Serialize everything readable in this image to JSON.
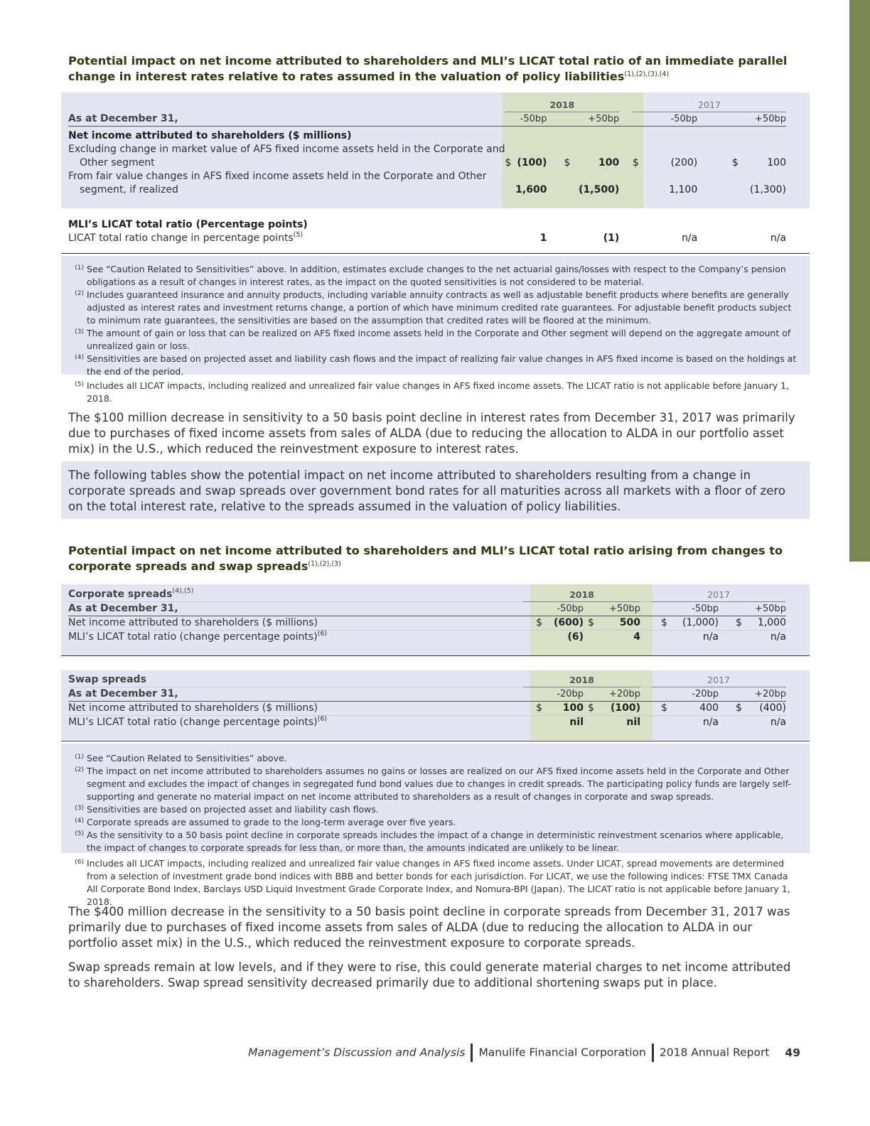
{
  "table1": {
    "heading": "Potential impact on net income attributed to shareholders and MLI’s LICAT total ratio of an immediate parallel change in interest rates relative to rates assumed in the valuation of policy liabilities",
    "heading_sup": "(1),(2),(3),(4)",
    "year_2018": "2018",
    "year_2017": "2017",
    "as_at": "As at December 31,",
    "bp_headers": [
      "-50bp",
      "+50bp",
      "-50bp",
      "+50bp"
    ],
    "section1": "Net income attributed to shareholders ($ millions)",
    "row1_label_a": "Excluding change in market value of AFS fixed income assets held in the Corporate and",
    "row1_label_b": "Other segment",
    "row1": [
      "$",
      "(100)",
      "$",
      "100",
      "$",
      "(200)",
      "$",
      "100"
    ],
    "row2_label_a": "From fair value changes in AFS fixed income assets held in the Corporate and Other",
    "row2_label_b": "segment, if realized",
    "row2": [
      "1,600",
      "(1,500)",
      "1,100",
      "(1,300)"
    ],
    "section2": "MLI’s LICAT total ratio (Percentage points)",
    "row3_label": "LICAT total ratio change in percentage points",
    "row3_sup": "(5)",
    "row3": [
      "1",
      "(1)",
      "n/a",
      "n/a"
    ]
  },
  "notes1": [
    {
      "n": "(1)",
      "t": "See “Caution Related to Sensitivities” above. In addition, estimates exclude changes to the net actuarial gains/losses with respect to the Company’s pension obligations as a result of changes in interest rates, as the impact on the quoted sensitivities is not considered to be material."
    },
    {
      "n": "(2)",
      "t": "Includes guaranteed insurance and annuity products, including variable annuity contracts as well as adjustable benefit products where benefits are generally adjusted as interest rates and investment returns change, a portion of which have minimum credited rate guarantees. For adjustable benefit products subject to minimum rate guarantees, the sensitivities are based on the assumption that credited rates will be floored at the minimum."
    },
    {
      "n": "(3)",
      "t": "The amount of gain or loss that can be realized on AFS fixed income assets held in the Corporate and Other segment will depend on the aggregate amount of unrealized gain or loss."
    },
    {
      "n": "(4)",
      "t": "Sensitivities are based on projected asset and liability cash flows and the impact of realizing fair value changes in AFS fixed income is based on the holdings at the end of the period."
    }
  ],
  "note1_5": {
    "n": "(5)",
    "t": "Includes all LICAT impacts, including realized and unrealized fair value changes in AFS fixed income assets. The LICAT ratio is not applicable before January 1, 2018."
  },
  "para1": "The $100 million decrease in sensitivity to a 50 basis point decline in interest rates from December 31, 2017 was primarily due to purchases of fixed income assets from sales of ALDA (due to reducing the allocation to ALDA in our portfolio asset mix) in the U.S., which reduced the reinvestment exposure to interest rates.",
  "para2": "The following tables show the potential impact on net income attributed to shareholders resulting from a change in corporate spreads and swap spreads over government bond rates for all maturities across all markets with a floor of zero on the total interest rate, relative to the spreads assumed in the valuation of policy liabilities.",
  "table2": {
    "heading": "Potential impact on net income attributed to shareholders and MLI’s LICAT total ratio arising from changes to corporate spreads and swap spreads",
    "heading_sup": "(1),(2),(3)",
    "title": "Corporate spreads",
    "title_sup": "(4),(5)",
    "year_2018": "2018",
    "year_2017": "2017",
    "as_at": "As at December 31,",
    "bp_headers": [
      "-50bp",
      "+50bp",
      "-50bp",
      "+50bp"
    ],
    "row1_label": "Net income attributed to shareholders ($ millions)",
    "row1": [
      "$",
      "(600)",
      "$",
      "500",
      "$",
      "(1,000)",
      "$",
      "1,000"
    ],
    "row2_label": "MLI’s LICAT total ratio (change percentage points)",
    "row2_sup": "(6)",
    "row2": [
      "(6)",
      "4",
      "n/a",
      "n/a"
    ]
  },
  "table3": {
    "title": "Swap spreads",
    "year_2018": "2018",
    "year_2017": "2017",
    "as_at": "As at December 31,",
    "bp_headers": [
      "-20bp",
      "+20bp",
      "-20bp",
      "+20bp"
    ],
    "row1_label": "Net income attributed to shareholders ($ millions)",
    "row1": [
      "$",
      "100",
      "$",
      "(100)",
      "$",
      "400",
      "$",
      "(400)"
    ],
    "row2_label": "MLI’s LICAT total ratio (change percentage points)",
    "row2_sup": "(6)",
    "row2": [
      "nil",
      "nil",
      "n/a",
      "n/a"
    ]
  },
  "notes2": [
    {
      "n": "(1)",
      "t": "See “Caution Related to Sensitivities” above."
    },
    {
      "n": "(2)",
      "t": "The impact on net income attributed to shareholders assumes no gains or losses are realized on our AFS fixed income assets held in the Corporate and Other segment and excludes the impact of changes in segregated fund bond values due to changes in credit spreads. The participating policy funds are largely self-supporting and generate no material impact on net income attributed to shareholders as a result of changes in corporate and swap spreads."
    },
    {
      "n": "(3)",
      "t": "Sensitivities are based on projected asset and liability cash flows."
    },
    {
      "n": "(4)",
      "t": "Corporate spreads are assumed to grade to the long-term average over five years."
    },
    {
      "n": "(5)",
      "t": "As the sensitivity to a 50 basis point decline in corporate spreads includes the impact of a change in deterministic reinvestment scenarios where applicable, the impact of changes to corporate spreads for less than, or more than, the amounts indicated are unlikely to be linear."
    }
  ],
  "note2_6": {
    "n": "(6)",
    "t": "Includes all LICAT impacts, including realized and unrealized fair value changes in AFS fixed income assets. Under LICAT, spread movements are determined from a selection of investment grade bond indices with BBB and better bonds for each jurisdiction. For LICAT, we use the following indices: FTSE TMX Canada All Corporate Bond Index, Barclays USD Liquid Investment Grade Corporate Index, and Nomura-BPI (Japan). The LICAT ratio is not applicable before January 1, 2018."
  },
  "para3": "The $400 million decrease in the sensitivity to a 50 basis point decline in corporate spreads from December 31, 2017 was primarily due to purchases of fixed income assets from sales of ALDA (due to reducing the allocation to ALDA in our portfolio asset mix) in the U.S., which reduced the reinvestment exposure to corporate spreads.",
  "para4": "Swap spreads remain at low levels, and if they were to rise, this could generate material charges to net income attributed to shareholders. Swap spread sensitivity decreased primarily due to additional shortening swaps put in place.",
  "footer": {
    "section": "Management’s Discussion and Analysis",
    "company": "Manulife Financial Corporation",
    "report": "2018 Annual Report",
    "page": "49"
  },
  "colors": {
    "accent": "#7a8753",
    "band": "#e2e6f3",
    "highlight": "#d8e0c8",
    "heading": "#2d3a13"
  }
}
